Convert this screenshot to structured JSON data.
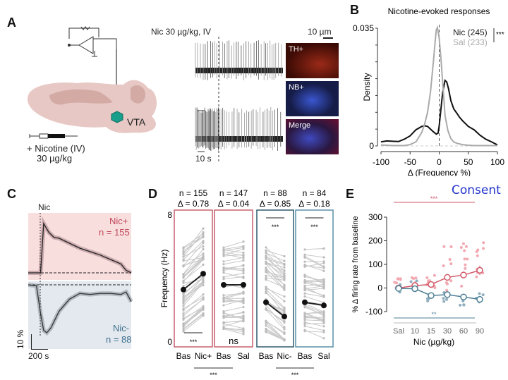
{
  "panels": {
    "A": {
      "letter": "A",
      "stim_label": "Nic 30 µg/kg, IV",
      "region_label": "VTA",
      "injection_label": "+ Nicotine (IV)",
      "dose_label": "30 µg/kg",
      "time_scale": "10 s",
      "scale_bar": "10 µm",
      "micrographs": [
        {
          "label": "TH+",
          "color": "#5a1208"
        },
        {
          "label": "NB+",
          "color": "#1b2150"
        },
        {
          "label": "Merge",
          "color": "#2a1740"
        }
      ]
    },
    "B": {
      "letter": "B"
    },
    "C": {
      "letter": "C",
      "stim_label": "Nic",
      "pos_label": "Nic+",
      "pos_n": "n = 155",
      "neg_label": "Nic-",
      "neg_n": "n = 88",
      "y_scale": "10 %",
      "x_scale": "200 s",
      "pos_color": "#c0485a",
      "neg_color": "#3d6e8c"
    },
    "D": {
      "letter": "D"
    },
    "E": {
      "letter": "E"
    }
  },
  "consent_label": "Consent",
  "chart_data": [
    {
      "id": "B",
      "type": "line",
      "title": "Nicotine-evoked responses",
      "xlabel": "Δ (Frequency %)",
      "ylabel": "Density",
      "xlim": [
        -100,
        100
      ],
      "ylim": [
        0,
        0.035
      ],
      "xticks": [
        "-100",
        "-50",
        "0",
        "50",
        "100"
      ],
      "yticks": [
        "0",
        "0.035"
      ],
      "significance": "***",
      "series": [
        {
          "name": "Nic (245)",
          "color": "#111111",
          "x": [
            -100,
            -90,
            -80,
            -70,
            -60,
            -50,
            -40,
            -30,
            -25,
            -20,
            -15,
            -10,
            -5,
            -2,
            0,
            3,
            6,
            10,
            13,
            16,
            20,
            25,
            30,
            35,
            40,
            50,
            60,
            70,
            80,
            90,
            100
          ],
          "y": [
            0.0012,
            0.0015,
            0.0014,
            0.0013,
            0.002,
            0.003,
            0.0048,
            0.0058,
            0.006,
            0.0058,
            0.005,
            0.0042,
            0.0035,
            0.0038,
            0.006,
            0.011,
            0.016,
            0.0195,
            0.019,
            0.017,
            0.0135,
            0.011,
            0.0098,
            0.0085,
            0.0075,
            0.0058,
            0.0048,
            0.0032,
            0.002,
            0.0012,
            0.0003
          ]
        },
        {
          "name": "Sal (233)",
          "color": "#aaaaaa",
          "x": [
            -100,
            -80,
            -60,
            -50,
            -40,
            -30,
            -25,
            -20,
            -15,
            -10,
            -7,
            -5,
            -3,
            0,
            3,
            5,
            8,
            10,
            15,
            20,
            25,
            30,
            40,
            50,
            60,
            80,
            100
          ],
          "y": [
            0.0003,
            0.0001,
            0.0001,
            0.0004,
            0.0012,
            0.004,
            0.0065,
            0.01,
            0.016,
            0.025,
            0.031,
            0.0345,
            0.0352,
            0.032,
            0.026,
            0.021,
            0.014,
            0.009,
            0.0045,
            0.0022,
            0.0012,
            0.0008,
            0.0004,
            0.0002,
            0.0001,
            0.0001,
            0.0001
          ]
        }
      ]
    },
    {
      "id": "C",
      "type": "line",
      "xlabel": "",
      "ylabel": "",
      "series": [
        {
          "name": "Nic+",
          "color": "#222222",
          "x": [
            0,
            0.08,
            0.12,
            0.15,
            0.2,
            0.25,
            0.3,
            0.4,
            0.5,
            0.6,
            0.7,
            0.8,
            0.9,
            0.95,
            1.0
          ],
          "y": [
            0,
            0,
            0,
            1,
            0.82,
            0.72,
            0.7,
            0.6,
            0.5,
            0.43,
            0.36,
            0.27,
            0.18,
            0.05,
            0
          ]
        },
        {
          "name": "Nic-",
          "color": "#333333",
          "x": [
            0,
            0.08,
            0.12,
            0.15,
            0.18,
            0.22,
            0.3,
            0.4,
            0.5,
            0.6,
            0.7,
            0.8,
            0.9,
            0.95,
            1.0
          ],
          "y": [
            0,
            -0.02,
            -0.6,
            -0.95,
            -1,
            -0.9,
            -0.55,
            -0.3,
            -0.18,
            -0.2,
            -0.18,
            -0.18,
            -0.2,
            -0.15,
            -0.35
          ]
        }
      ]
    },
    {
      "id": "D",
      "type": "scatter",
      "ylabel": "Frequency (Hz)",
      "ylim": [
        0,
        8
      ],
      "yticks": [
        "0",
        "8"
      ],
      "groups": [
        {
          "title_n": "n = 155",
          "title_delta": "Δ = 0.78",
          "categories": [
            "Bas",
            "Nic+"
          ],
          "mean": [
            3.3,
            4.3
          ],
          "sig": "***",
          "box_color": "#c9606e"
        },
        {
          "title_n": "n = 147",
          "title_delta": "Δ = 0.04",
          "categories": [
            "Bas",
            "Sal"
          ],
          "mean": [
            3.6,
            3.6
          ],
          "sig": "ns",
          "box_color": "#c9606e"
        },
        {
          "title_n": "n = 88",
          "title_delta": "Δ = 0.85",
          "categories": [
            "Bas",
            "Nic-"
          ],
          "mean": [
            2.5,
            1.6
          ],
          "sig": "***",
          "box_color": "#2f5a6c"
        },
        {
          "title_n": "n = 84",
          "title_delta": "Δ = 0.18",
          "categories": [
            "Bas",
            "Sal"
          ],
          "mean": [
            2.5,
            2.3
          ],
          "sig": "***",
          "box_color": "#5a8fa8"
        }
      ],
      "between_sig": [
        "***",
        "***"
      ]
    },
    {
      "id": "E",
      "type": "line",
      "xlabel": "Nic (µg/kg)",
      "ylabel": "% Δ firing rate from baseline",
      "ylim": [
        -100,
        300
      ],
      "yticks": [
        "-100",
        "0",
        "100",
        "200",
        "300"
      ],
      "categories": [
        "Sal",
        "10",
        "15",
        "30",
        "60",
        "90"
      ],
      "series": [
        {
          "name": "Nic+",
          "color": "#d05a6a",
          "values": [
            0,
            10,
            15,
            45,
            55,
            75
          ],
          "err": [
            8,
            8,
            10,
            12,
            15,
            20
          ]
        },
        {
          "name": "Nic-",
          "color": "#4e7f96",
          "values": [
            -2,
            -3,
            -32,
            -28,
            -38,
            -48
          ],
          "err": [
            6,
            6,
            10,
            8,
            10,
            10
          ]
        }
      ],
      "sig_top": "***",
      "sig_bottom": "**"
    }
  ]
}
